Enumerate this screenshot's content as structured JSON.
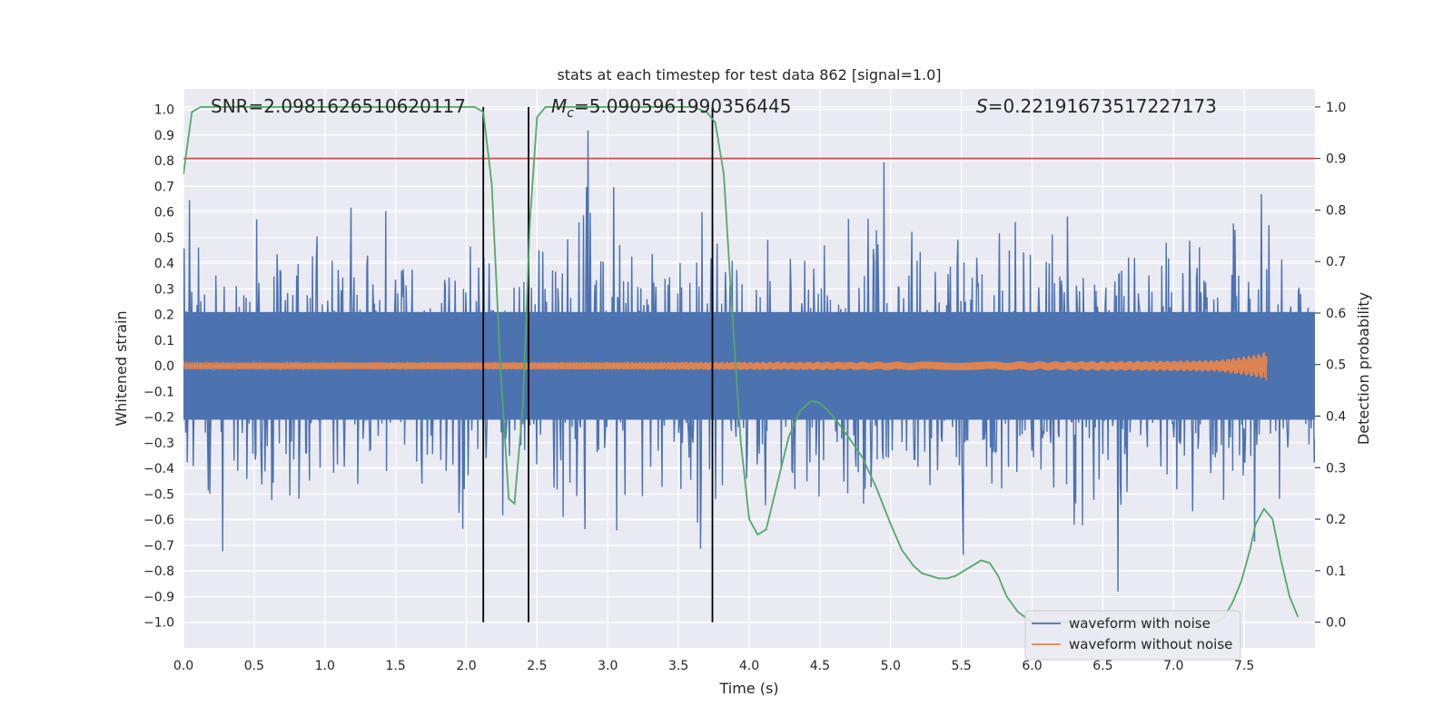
{
  "chart_data": {
    "type": "line",
    "title": "stats at each timestep for test data 862 [signal=1.0]",
    "xlabel": "Time (s)",
    "ylabel_left": "Whitened strain",
    "ylabel_right": "Detection probability",
    "xlim": [
      0,
      8
    ],
    "ylim_left": [
      -1.1,
      1.08
    ],
    "ylim_right": [
      -0.05,
      1.035
    ],
    "x_ticks": [
      "0.0",
      "0.5",
      "1.0",
      "1.5",
      "2.0",
      "2.5",
      "3.0",
      "3.5",
      "4.0",
      "4.5",
      "5.0",
      "5.5",
      "6.0",
      "6.5",
      "7.0",
      "7.5"
    ],
    "left_ticks": [
      "1.0",
      "0.9",
      "0.8",
      "0.7",
      "0.6",
      "0.5",
      "0.4",
      "0.3",
      "0.2",
      "0.1",
      "0.0",
      "−0.1",
      "−0.2",
      "−0.3",
      "−0.4",
      "−0.5",
      "−0.6",
      "−0.7",
      "−0.8",
      "−0.9",
      "−1.0"
    ],
    "right_ticks": [
      "1.0",
      "0.9",
      "0.8",
      "0.7",
      "0.6",
      "0.5",
      "0.4",
      "0.3",
      "0.2",
      "0.1",
      "0.0"
    ],
    "annotations": {
      "snr": "SNR=2.0981626510620117",
      "mc_symbol": "M",
      "mc_sub": "c",
      "mc_value": "=5.0905961990356445",
      "s_symbol": "S",
      "s_value": "=0.22191673517227173"
    },
    "threshold_right": 0.9,
    "vertical_lines_x": [
      2.12,
      2.44,
      3.74
    ],
    "detection_probability": {
      "name": "detection probability",
      "x": [
        0.0,
        0.06,
        0.12,
        0.5,
        1.0,
        1.5,
        2.0,
        2.06,
        2.12,
        2.18,
        2.24,
        2.3,
        2.34,
        2.4,
        2.45,
        2.5,
        2.56,
        2.62,
        3.0,
        3.4,
        3.6,
        3.7,
        3.76,
        3.82,
        3.88,
        3.94,
        4.0,
        4.06,
        4.12,
        4.2,
        4.28,
        4.36,
        4.44,
        4.5,
        4.56,
        4.62,
        4.7,
        4.8,
        4.9,
        5.0,
        5.08,
        5.16,
        5.22,
        5.28,
        5.34,
        5.4,
        5.46,
        5.52,
        5.58,
        5.64,
        5.7,
        5.76,
        5.82,
        5.9,
        6.0,
        6.2,
        6.5,
        7.0,
        7.3,
        7.36,
        7.42,
        7.48,
        7.54,
        7.58,
        7.64,
        7.7,
        7.76,
        7.82,
        7.88
      ],
      "values": [
        0.87,
        0.99,
        1.0,
        1.0,
        1.0,
        1.0,
        1.0,
        1.0,
        0.99,
        0.85,
        0.5,
        0.24,
        0.23,
        0.42,
        0.78,
        0.98,
        1.0,
        1.0,
        1.0,
        1.0,
        1.0,
        0.99,
        0.97,
        0.87,
        0.6,
        0.35,
        0.2,
        0.17,
        0.18,
        0.27,
        0.36,
        0.41,
        0.43,
        0.425,
        0.41,
        0.39,
        0.36,
        0.32,
        0.26,
        0.19,
        0.14,
        0.11,
        0.095,
        0.09,
        0.085,
        0.085,
        0.09,
        0.1,
        0.11,
        0.12,
        0.115,
        0.09,
        0.05,
        0.02,
        0.0,
        0.0,
        0.0,
        0.0,
        0.0,
        0.01,
        0.04,
        0.08,
        0.14,
        0.19,
        0.22,
        0.2,
        0.12,
        0.05,
        0.01
      ]
    },
    "legend": {
      "position": "lower-right",
      "entries": [
        {
          "label": "waveform with noise",
          "color": "#4c72b0"
        },
        {
          "label": "waveform without noise",
          "color": "#dd8452"
        }
      ]
    },
    "colors": {
      "noise": "#4c72b0",
      "clean": "#dd8452",
      "probability": "#55a868",
      "threshold": "#c44e52",
      "vline": "#000000",
      "axes_bg": "#eaeaf2",
      "grid": "#ffffff"
    }
  }
}
